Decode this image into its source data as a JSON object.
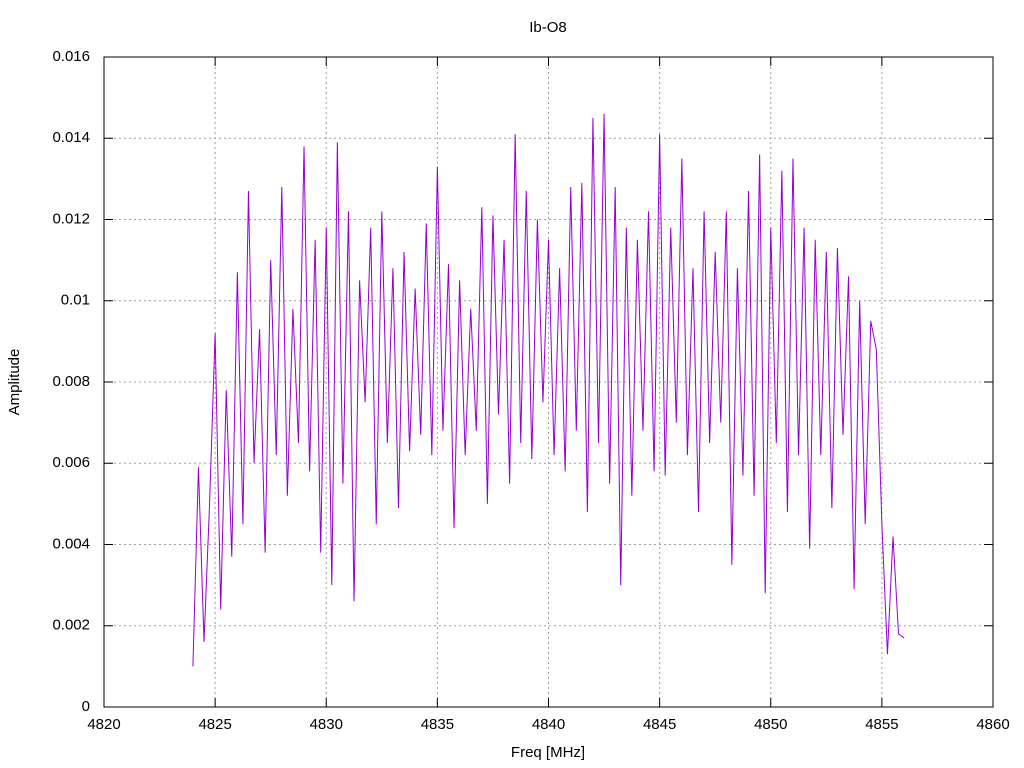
{
  "chart_data": {
    "type": "line",
    "title": "Ib-O8",
    "x_label": "Freq [MHz]",
    "y_label": "Amplitude",
    "xlim": [
      4820,
      4860
    ],
    "xticks": [
      4820,
      4825,
      4830,
      4835,
      4840,
      4845,
      4850,
      4855,
      4860
    ],
    "ylim": [
      0,
      0.016
    ],
    "yticks": [
      0,
      0.002,
      0.004,
      0.006,
      0.008,
      0.01,
      0.012,
      0.014,
      0.016
    ],
    "grid": true,
    "series": [
      {
        "color": "#9400d3",
        "x": [
          4824,
          4824.25,
          4824.5,
          4824.75,
          4825,
          4825.25,
          4825.5,
          4825.75,
          4826,
          4826.25,
          4826.5,
          4826.75,
          4827,
          4827.25,
          4827.5,
          4827.75,
          4828,
          4828.25,
          4828.5,
          4828.75,
          4829,
          4829.25,
          4829.5,
          4829.75,
          4830,
          4830.25,
          4830.5,
          4830.75,
          4831,
          4831.25,
          4831.5,
          4831.75,
          4832,
          4832.25,
          4832.5,
          4832.75,
          4833,
          4833.25,
          4833.5,
          4833.75,
          4834,
          4834.25,
          4834.5,
          4834.75,
          4835,
          4835.25,
          4835.5,
          4835.75,
          4836,
          4836.25,
          4836.5,
          4836.75,
          4837,
          4837.25,
          4837.5,
          4837.75,
          4838,
          4838.25,
          4838.5,
          4838.75,
          4839,
          4839.25,
          4839.5,
          4839.75,
          4840,
          4840.25,
          4840.5,
          4840.75,
          4841,
          4841.25,
          4841.5,
          4841.75,
          4842,
          4842.25,
          4842.5,
          4842.75,
          4843,
          4843.25,
          4843.5,
          4843.75,
          4844,
          4844.25,
          4844.5,
          4844.75,
          4845,
          4845.25,
          4845.5,
          4845.75,
          4846,
          4846.25,
          4846.5,
          4846.75,
          4847,
          4847.25,
          4847.5,
          4847.75,
          4848,
          4848.25,
          4848.5,
          4848.75,
          4849,
          4849.25,
          4849.5,
          4849.75,
          4850,
          4850.25,
          4850.5,
          4850.75,
          4851,
          4851.25,
          4851.5,
          4851.75,
          4852,
          4852.25,
          4852.5,
          4852.75,
          4853,
          4853.25,
          4853.5,
          4853.75,
          4854,
          4854.25,
          4854.5,
          4854.75,
          4855,
          4855.25,
          4855.5,
          4855.75,
          4856
        ],
        "values": [
          0.001,
          0.0059,
          0.0016,
          0.005,
          0.0092,
          0.0024,
          0.0078,
          0.0037,
          0.0107,
          0.0045,
          0.0127,
          0.006,
          0.0093,
          0.0038,
          0.011,
          0.0062,
          0.0128,
          0.0052,
          0.0098,
          0.0065,
          0.0138,
          0.0058,
          0.0115,
          0.0038,
          0.0118,
          0.003,
          0.0139,
          0.0055,
          0.0122,
          0.0026,
          0.0105,
          0.0075,
          0.0118,
          0.0045,
          0.0122,
          0.0065,
          0.0108,
          0.0049,
          0.0112,
          0.0063,
          0.0103,
          0.0067,
          0.0119,
          0.0062,
          0.0133,
          0.0068,
          0.0109,
          0.0044,
          0.0105,
          0.0062,
          0.0098,
          0.0068,
          0.0123,
          0.005,
          0.0121,
          0.0072,
          0.0115,
          0.0055,
          0.0141,
          0.0065,
          0.0127,
          0.0061,
          0.012,
          0.0075,
          0.0115,
          0.0062,
          0.0108,
          0.0058,
          0.0128,
          0.0068,
          0.0129,
          0.0048,
          0.0145,
          0.0065,
          0.0146,
          0.0055,
          0.0128,
          0.003,
          0.0118,
          0.0052,
          0.0115,
          0.0068,
          0.0122,
          0.0058,
          0.0141,
          0.0057,
          0.0118,
          0.007,
          0.0135,
          0.0062,
          0.0108,
          0.0048,
          0.0122,
          0.0065,
          0.0112,
          0.007,
          0.0122,
          0.0035,
          0.0108,
          0.0057,
          0.0127,
          0.0052,
          0.0136,
          0.0028,
          0.0118,
          0.0065,
          0.0132,
          0.0048,
          0.0135,
          0.0062,
          0.0118,
          0.0039,
          0.0115,
          0.0062,
          0.0112,
          0.0049,
          0.0113,
          0.0067,
          0.0106,
          0.0029,
          0.01,
          0.0045,
          0.0095,
          0.0088,
          0.0045,
          0.0013,
          0.0042,
          0.0018,
          0.0017
        ]
      }
    ]
  }
}
